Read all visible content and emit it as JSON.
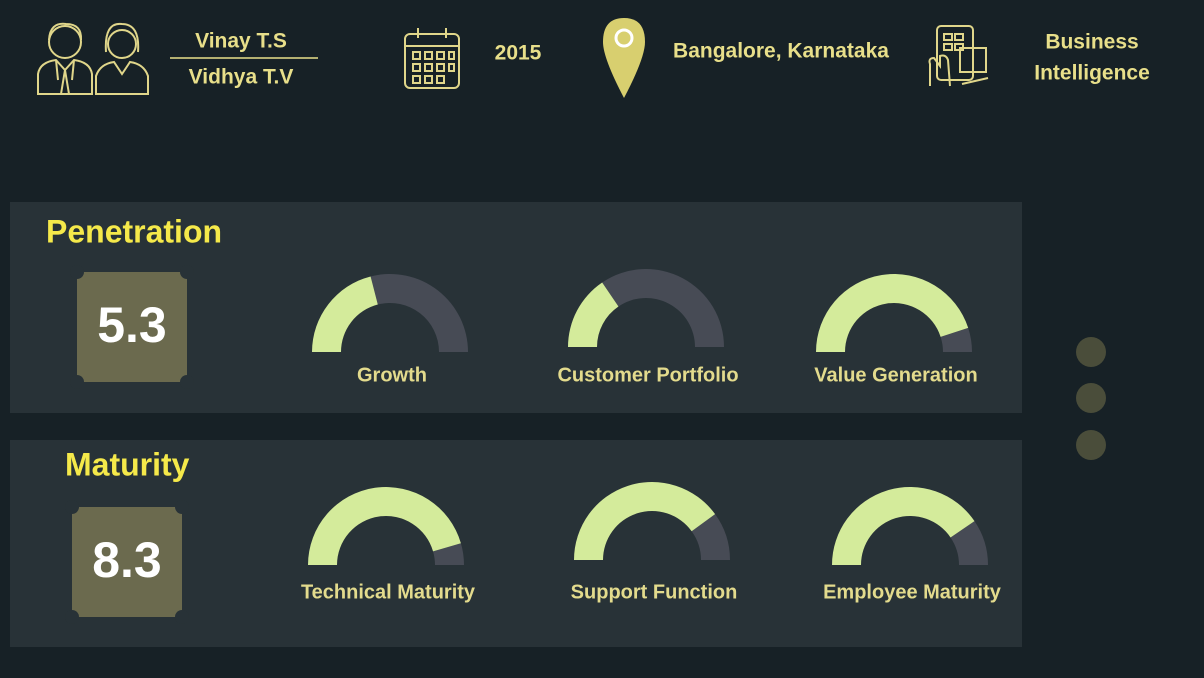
{
  "header": {
    "people": [
      "Vinay T.S",
      "Vidhya T.V"
    ],
    "year": "2015",
    "location": "Bangalore, Karnataka",
    "domain": [
      "Business",
      "Intelligence"
    ]
  },
  "gauge_range": [
    0,
    100
  ],
  "sections": [
    {
      "title": "Penetration",
      "score": 5.3,
      "gauges": [
        {
          "label": "Growth",
          "value": 42
        },
        {
          "label": "Customer Portfolio",
          "value": 31
        },
        {
          "label": "Value Generation",
          "value": 90
        }
      ]
    },
    {
      "title": "Maturity",
      "score": 8.3,
      "gauges": [
        {
          "label": "Technical Maturity",
          "value": 91
        },
        {
          "label": "Support Function",
          "value": 80
        },
        {
          "label": "Employee Maturity",
          "value": 81
        }
      ]
    }
  ]
}
